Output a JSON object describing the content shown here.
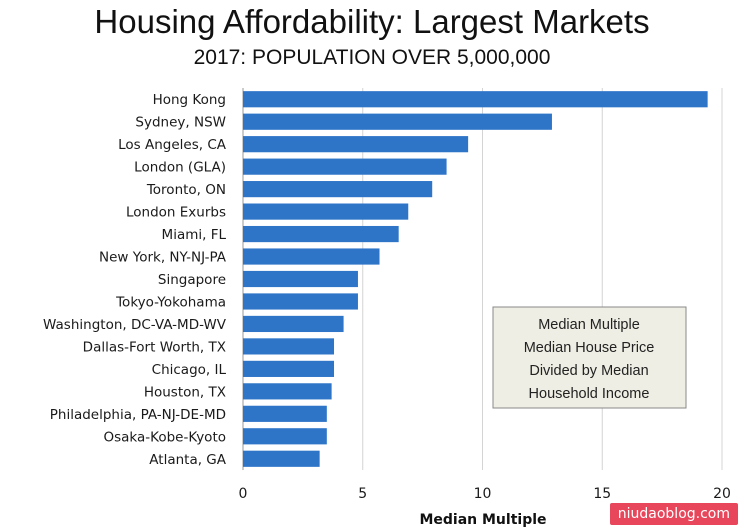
{
  "chart_data": {
    "type": "bar",
    "orientation": "horizontal",
    "title": "Housing Affordability: Largest Markets",
    "subtitle": "2017: POPULATION OVER 5,000,000",
    "xlabel": "Median Multiple",
    "ylabel": "",
    "xlim": [
      0,
      20
    ],
    "xticks": [
      0,
      5,
      10,
      15,
      20
    ],
    "grid": true,
    "bar_color": "#2e75c8",
    "categories": [
      "Hong Kong",
      "Sydney, NSW",
      "Los Angeles, CA",
      "London (GLA)",
      "Toronto, ON",
      "London Exurbs",
      "Miami, FL",
      "New York, NY-NJ-PA",
      "Singapore",
      "Tokyo-Yokohama",
      "Washington, DC-VA-MD-WV",
      "Dallas-Fort Worth, TX",
      "Chicago, IL",
      "Houston, TX",
      "Philadelphia, PA-NJ-DE-MD",
      "Osaka-Kobe-Kyoto",
      "Atlanta, GA"
    ],
    "values": [
      19.4,
      12.9,
      9.4,
      8.5,
      7.9,
      6.9,
      6.5,
      5.7,
      4.8,
      4.8,
      4.2,
      3.8,
      3.8,
      3.7,
      3.5,
      3.5,
      3.2
    ],
    "annotation": [
      "Median Multiple",
      "Median House Price",
      "Divided by Median",
      "Household Income"
    ]
  },
  "watermark": "niudaoblog.com"
}
